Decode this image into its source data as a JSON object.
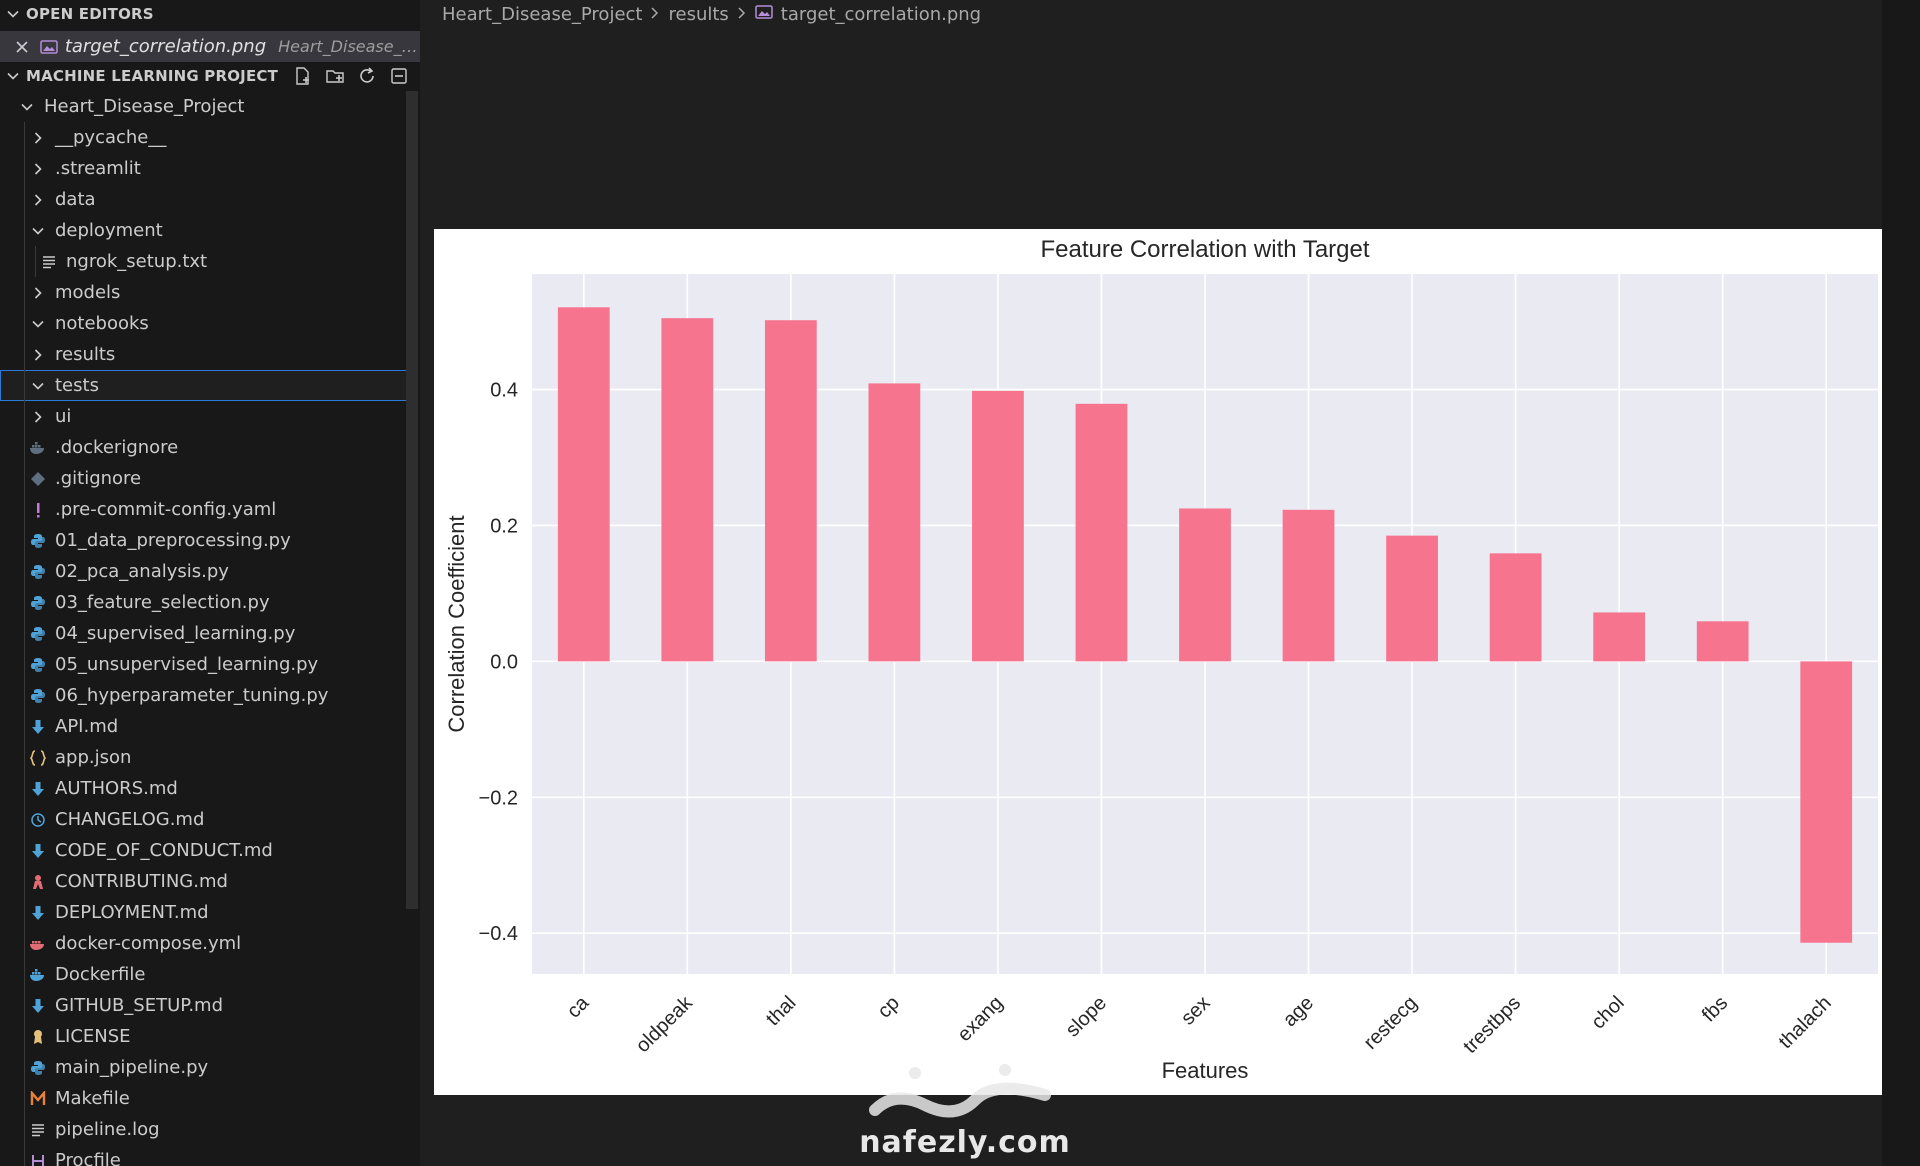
{
  "sidebar": {
    "open_editors_title": "OPEN EDITORS",
    "open_editor": {
      "name": "target_correlation.png",
      "description": "Heart_Disease_Projec..."
    },
    "project_title": "MACHINE LEARNING PROJECT",
    "toolbar_icons": [
      "new-file-icon",
      "new-folder-icon",
      "refresh-icon",
      "collapse-all-icon"
    ],
    "tree": [
      {
        "label": "Heart_Disease_Project",
        "kind": "folder",
        "open": true,
        "depth": 0
      },
      {
        "label": "__pycache__",
        "kind": "folder",
        "open": false,
        "depth": 1
      },
      {
        "label": ".streamlit",
        "kind": "folder",
        "open": false,
        "depth": 1
      },
      {
        "label": "data",
        "kind": "folder",
        "open": false,
        "depth": 1
      },
      {
        "label": "deployment",
        "kind": "folder",
        "open": true,
        "depth": 1
      },
      {
        "label": "ngrok_setup.txt",
        "kind": "file",
        "icon": "text-file-icon",
        "color": "#cccccc",
        "depth": 2
      },
      {
        "label": "models",
        "kind": "folder",
        "open": false,
        "depth": 1
      },
      {
        "label": "notebooks",
        "kind": "folder",
        "open": true,
        "depth": 1
      },
      {
        "label": "results",
        "kind": "folder",
        "open": false,
        "depth": 1
      },
      {
        "label": "tests",
        "kind": "folder",
        "open": true,
        "depth": 1,
        "selected": true
      },
      {
        "label": "ui",
        "kind": "folder",
        "open": false,
        "depth": 1
      },
      {
        "label": ".dockerignore",
        "kind": "file",
        "icon": "docker-icon",
        "color": "#5f6f80",
        "depth": 1
      },
      {
        "label": ".gitignore",
        "kind": "file",
        "icon": "git-icon",
        "color": "#5f6f80",
        "depth": 1
      },
      {
        "label": ".pre-commit-config.yaml",
        "kind": "file",
        "icon": "yaml-icon",
        "color": "#c678dd",
        "depth": 1
      },
      {
        "label": "01_data_preprocessing.py",
        "kind": "file",
        "icon": "python-icon",
        "color": "#4fa3d9",
        "depth": 1
      },
      {
        "label": "02_pca_analysis.py",
        "kind": "file",
        "icon": "python-icon",
        "color": "#4fa3d9",
        "depth": 1
      },
      {
        "label": "03_feature_selection.py",
        "kind": "file",
        "icon": "python-icon",
        "color": "#4fa3d9",
        "depth": 1
      },
      {
        "label": "04_supervised_learning.py",
        "kind": "file",
        "icon": "python-icon",
        "color": "#4fa3d9",
        "depth": 1
      },
      {
        "label": "05_unsupervised_learning.py",
        "kind": "file",
        "icon": "python-icon",
        "color": "#4fa3d9",
        "depth": 1
      },
      {
        "label": "06_hyperparameter_tuning.py",
        "kind": "file",
        "icon": "python-icon",
        "color": "#4fa3d9",
        "depth": 1
      },
      {
        "label": "API.md",
        "kind": "file",
        "icon": "markdown-icon",
        "color": "#4fa3d9",
        "depth": 1
      },
      {
        "label": "app.json",
        "kind": "file",
        "icon": "json-icon",
        "color": "#e5c07b",
        "depth": 1
      },
      {
        "label": "AUTHORS.md",
        "kind": "file",
        "icon": "markdown-icon",
        "color": "#4fa3d9",
        "depth": 1
      },
      {
        "label": "CHANGELOG.md",
        "kind": "file",
        "icon": "changelog-icon",
        "color": "#4fa3d9",
        "depth": 1
      },
      {
        "label": "CODE_OF_CONDUCT.md",
        "kind": "file",
        "icon": "markdown-icon",
        "color": "#4fa3d9",
        "depth": 1
      },
      {
        "label": "CONTRIBUTING.md",
        "kind": "file",
        "icon": "contributing-icon",
        "color": "#e06c75",
        "depth": 1
      },
      {
        "label": "DEPLOYMENT.md",
        "kind": "file",
        "icon": "markdown-icon",
        "color": "#4fa3d9",
        "depth": 1
      },
      {
        "label": "docker-compose.yml",
        "kind": "file",
        "icon": "docker-compose-icon",
        "color": "#e06c75",
        "depth": 1
      },
      {
        "label": "Dockerfile",
        "kind": "file",
        "icon": "docker-icon",
        "color": "#4fa3d9",
        "depth": 1
      },
      {
        "label": "GITHUB_SETUP.md",
        "kind": "file",
        "icon": "markdown-icon",
        "color": "#4fa3d9",
        "depth": 1
      },
      {
        "label": "LICENSE",
        "kind": "file",
        "icon": "license-icon",
        "color": "#e5c07b",
        "depth": 1
      },
      {
        "label": "main_pipeline.py",
        "kind": "file",
        "icon": "python-icon",
        "color": "#4fa3d9",
        "depth": 1
      },
      {
        "label": "Makefile",
        "kind": "file",
        "icon": "makefile-icon",
        "color": "#e8823a",
        "depth": 1
      },
      {
        "label": "pipeline.log",
        "kind": "file",
        "icon": "log-icon",
        "color": "#cccccc",
        "depth": 1
      },
      {
        "label": "Procfile",
        "kind": "file",
        "icon": "procfile-icon",
        "color": "#b58ed8",
        "depth": 1
      }
    ]
  },
  "breadcrumb": {
    "parts": [
      "Heart_Disease_Project",
      "results"
    ],
    "file": "target_correlation.png"
  },
  "chart_data": {
    "type": "bar",
    "title": "Feature Correlation with Target",
    "xlabel": "Features",
    "ylabel": "Correlation Coefficient",
    "categories": [
      "ca",
      "oldpeak",
      "thal",
      "cp",
      "exang",
      "slope",
      "sex",
      "age",
      "restecg",
      "trestbps",
      "chol",
      "fbs",
      "thalach"
    ],
    "values": [
      0.521,
      0.505,
      0.502,
      0.409,
      0.398,
      0.379,
      0.225,
      0.223,
      0.185,
      0.159,
      0.072,
      0.059,
      -0.414
    ],
    "yticks": [
      -0.4,
      -0.2,
      0.0,
      0.2,
      0.4
    ],
    "ytick_labels": [
      "−0.4",
      "−0.2",
      "0.0",
      "0.2",
      "0.4"
    ],
    "ylim": [
      -0.46,
      0.57
    ],
    "bar_color": "#f7748f",
    "plot_background": "#eaeaf2",
    "grid": true,
    "legend": false
  },
  "watermark": {
    "text": "nafezly.com"
  }
}
